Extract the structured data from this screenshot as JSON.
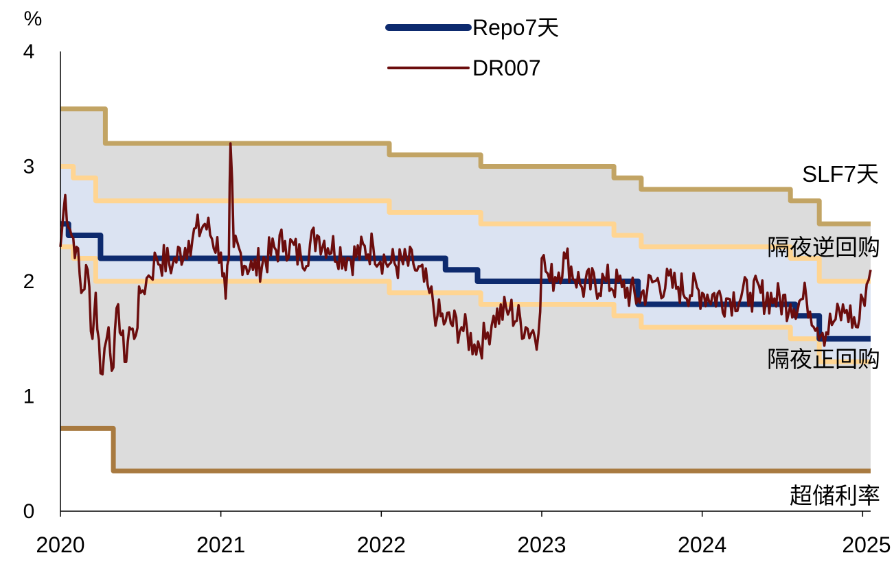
{
  "chart_data": {
    "type": "line",
    "ylabel": "%",
    "ylim": [
      0,
      4
    ],
    "xlim": [
      2020,
      2025.05
    ],
    "x_ticks": [
      "2020",
      "2021",
      "2022",
      "2023",
      "2024",
      "2025"
    ],
    "y_ticks": [
      "0",
      "1",
      "2",
      "3",
      "4"
    ],
    "grid": false,
    "legend_position": "top-center",
    "colors": {
      "repo": "#0d2a6e",
      "dr007": "#6b0d0d",
      "slf": "#c2a464",
      "reverse_repo": "#ffd592",
      "excess_reserve": "#a87a40",
      "outer_band": "#dcdcdc",
      "inner_band": "#dbe3f2"
    },
    "series": [
      {
        "name": "Repo7天",
        "style": "step",
        "points": [
          [
            2020.0,
            2.5
          ],
          [
            2020.05,
            2.4
          ],
          [
            2020.25,
            2.2
          ],
          [
            2022.05,
            2.2
          ],
          [
            2022.4,
            2.1
          ],
          [
            2022.6,
            2.0
          ],
          [
            2023.45,
            2.0
          ],
          [
            2023.6,
            1.8
          ],
          [
            2024.5,
            1.8
          ],
          [
            2024.58,
            1.7
          ],
          [
            2024.73,
            1.5
          ],
          [
            2025.05,
            1.5
          ]
        ]
      },
      {
        "name": "DR007",
        "style": "noisy",
        "points": [
          [
            2020.0,
            2.3
          ],
          [
            2020.03,
            2.75
          ],
          [
            2020.06,
            2.45
          ],
          [
            2020.1,
            2.3
          ],
          [
            2020.13,
            1.9
          ],
          [
            2020.17,
            2.1
          ],
          [
            2020.2,
            1.5
          ],
          [
            2020.22,
            1.9
          ],
          [
            2020.25,
            1.2
          ],
          [
            2020.3,
            1.6
          ],
          [
            2020.33,
            1.25
          ],
          [
            2020.36,
            1.8
          ],
          [
            2020.4,
            1.3
          ],
          [
            2020.43,
            1.6
          ],
          [
            2020.46,
            1.5
          ],
          [
            2020.5,
            1.9
          ],
          [
            2020.55,
            2.05
          ],
          [
            2020.6,
            2.2
          ],
          [
            2020.7,
            2.15
          ],
          [
            2020.8,
            2.35
          ],
          [
            2020.9,
            2.5
          ],
          [
            2021.0,
            2.25
          ],
          [
            2021.03,
            1.85
          ],
          [
            2021.05,
            2.2
          ],
          [
            2021.06,
            3.2
          ],
          [
            2021.08,
            2.3
          ],
          [
            2021.2,
            2.1
          ],
          [
            2021.4,
            2.35
          ],
          [
            2021.5,
            2.2
          ],
          [
            2021.6,
            2.4
          ],
          [
            2021.8,
            2.2
          ],
          [
            2021.95,
            2.3
          ],
          [
            2022.05,
            2.15
          ],
          [
            2022.2,
            2.15
          ],
          [
            2022.3,
            1.9
          ],
          [
            2022.35,
            1.7
          ],
          [
            2022.4,
            1.65
          ],
          [
            2022.5,
            1.6
          ],
          [
            2022.58,
            1.45
          ],
          [
            2022.65,
            1.5
          ],
          [
            2022.7,
            1.7
          ],
          [
            2022.8,
            1.75
          ],
          [
            2022.9,
            1.6
          ],
          [
            2022.98,
            1.55
          ],
          [
            2023.0,
            2.2
          ],
          [
            2023.05,
            2.0
          ],
          [
            2023.15,
            2.2
          ],
          [
            2023.25,
            1.95
          ],
          [
            2023.4,
            2.0
          ],
          [
            2023.5,
            1.95
          ],
          [
            2023.6,
            1.85
          ],
          [
            2023.7,
            2.0
          ],
          [
            2023.85,
            1.95
          ],
          [
            2024.0,
            1.9
          ],
          [
            2024.15,
            1.85
          ],
          [
            2024.3,
            1.9
          ],
          [
            2024.45,
            1.85
          ],
          [
            2024.55,
            1.8
          ],
          [
            2024.65,
            1.85
          ],
          [
            2024.75,
            1.55
          ],
          [
            2024.82,
            1.65
          ],
          [
            2024.9,
            1.75
          ],
          [
            2024.97,
            1.6
          ],
          [
            2025.0,
            1.85
          ],
          [
            2025.05,
            2.1
          ]
        ]
      },
      {
        "name": "SLF7天",
        "style": "step",
        "points": [
          [
            2020.0,
            3.5
          ],
          [
            2020.28,
            3.2
          ],
          [
            2022.05,
            3.1
          ],
          [
            2022.62,
            3.0
          ],
          [
            2023.45,
            2.9
          ],
          [
            2023.62,
            2.8
          ],
          [
            2024.55,
            2.7
          ],
          [
            2024.73,
            2.5
          ],
          [
            2025.05,
            2.5
          ]
        ]
      },
      {
        "name": "隔夜逆回购",
        "style": "step",
        "points": [
          [
            2020.0,
            3.0
          ],
          [
            2020.08,
            2.9
          ],
          [
            2020.22,
            2.7
          ],
          [
            2022.05,
            2.6
          ],
          [
            2022.62,
            2.5
          ],
          [
            2023.45,
            2.4
          ],
          [
            2023.62,
            2.3
          ],
          [
            2024.55,
            2.2
          ],
          [
            2024.73,
            2.0
          ],
          [
            2025.05,
            2.0
          ]
        ]
      },
      {
        "name": "隔夜正回购",
        "style": "step",
        "points": [
          [
            2020.0,
            2.3
          ],
          [
            2020.08,
            2.2
          ],
          [
            2020.22,
            2.0
          ],
          [
            2022.05,
            1.9
          ],
          [
            2022.62,
            1.8
          ],
          [
            2023.45,
            1.7
          ],
          [
            2023.62,
            1.6
          ],
          [
            2024.55,
            1.5
          ],
          [
            2024.73,
            1.3
          ],
          [
            2025.05,
            1.3
          ]
        ]
      },
      {
        "name": "超储利率",
        "style": "step",
        "points": [
          [
            2020.0,
            0.72
          ],
          [
            2020.33,
            0.35
          ],
          [
            2025.05,
            0.35
          ]
        ]
      }
    ],
    "labels": {
      "slf": "SLF7天",
      "reverse_repo": "隔夜逆回购",
      "repo_overnight": "隔夜正回购",
      "excess_reserve": "超储利率"
    },
    "legend": [
      "Repo7天",
      "DR007"
    ]
  }
}
